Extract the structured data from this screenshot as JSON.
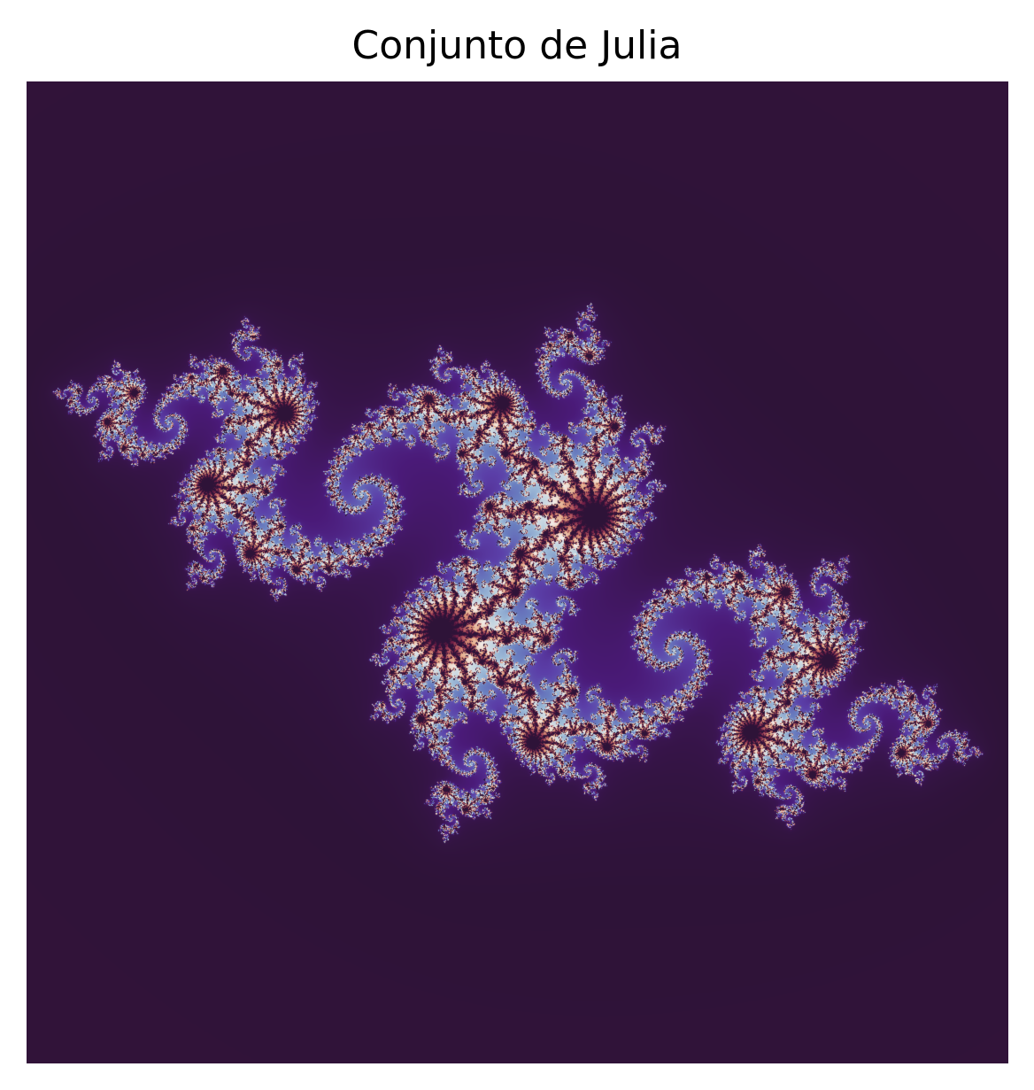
{
  "figure": {
    "title": "Conjunto de Julia"
  },
  "image": {
    "subject": "julia-set-fractal",
    "colormap": [
      "#36123b",
      "#2e1338",
      "#3a1550",
      "#4a1a78",
      "#5b3fa8",
      "#6a7fc0",
      "#a9c7dc",
      "#f2ece8",
      "#e3a37e",
      "#b0525d",
      "#6a1b44",
      "#2e1338"
    ],
    "interior_color": "#2e1338",
    "axes_visible": false
  }
}
